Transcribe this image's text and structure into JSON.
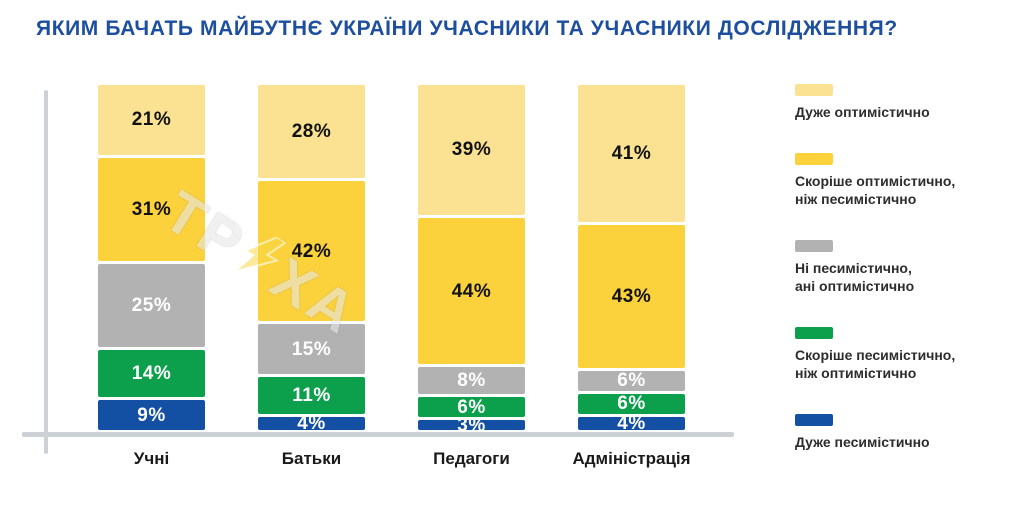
{
  "title": "ЯКИМ БАЧАТЬ МАЙБУТНЄ УКРАЇНИ УЧАСНИКИ ТА УЧАСНИКИ ДОСЛІДЖЕННЯ?",
  "colors": {
    "title": "#1E4F9E",
    "axis": "#CDD1D5",
    "very_optimistic": "#FAE292",
    "rather_optimistic": "#FBD23B",
    "neutral": "#B2B2B2",
    "rather_pessimistic": "#0CA04C",
    "very_pessimistic": "#134FA3"
  },
  "chart_data": {
    "type": "bar",
    "stacked": true,
    "orientation": "vertical",
    "categories": [
      "Учні",
      "Батьки",
      "Педагоги",
      "Адміністрація"
    ],
    "series": [
      {
        "name": "Дуже оптимістично",
        "color": "#FAE292",
        "label_color": "#111111",
        "values": [
          21,
          28,
          39,
          41
        ]
      },
      {
        "name": "Скоріше оптимістично, ніж песимістично",
        "color": "#FBD23B",
        "label_color": "#111111",
        "values": [
          31,
          42,
          44,
          43
        ]
      },
      {
        "name": "Ні песимістично, ані оптимістично",
        "color": "#B2B2B2",
        "label_color": "#FFFFFF",
        "values": [
          25,
          15,
          8,
          6
        ]
      },
      {
        "name": "Скоріше песимістично, ніж оптимістично",
        "color": "#0CA04C",
        "label_color": "#FFFFFF",
        "values": [
          14,
          11,
          6,
          6
        ]
      },
      {
        "name": "Дуже песимістично",
        "color": "#134FA3",
        "label_color": "#FFFFFF",
        "values": [
          9,
          4,
          3,
          4
        ]
      }
    ],
    "value_suffix": "%",
    "ylim": [
      0,
      100
    ],
    "grid": false,
    "legend_position": "right"
  },
  "legend": {
    "items": [
      {
        "color": "#FAE292",
        "label_lines": [
          "Дуже оптимістично"
        ]
      },
      {
        "color": "#FBD23B",
        "label_lines": [
          "Скоріше оптимістично,",
          "ніж песимістично"
        ]
      },
      {
        "color": "#B2B2B2",
        "label_lines": [
          "Ні песимістично,",
          "ані оптимістично"
        ]
      },
      {
        "color": "#0CA04C",
        "label_lines": [
          "Скоріше песимістично,",
          "ніж оптимістично"
        ]
      },
      {
        "color": "#134FA3",
        "label_lines": [
          "Дуже песимістично"
        ]
      }
    ]
  },
  "watermark": {
    "prefix": "ТР",
    "suffix": "ХА",
    "bolt_icon": "lightning-bolt"
  }
}
